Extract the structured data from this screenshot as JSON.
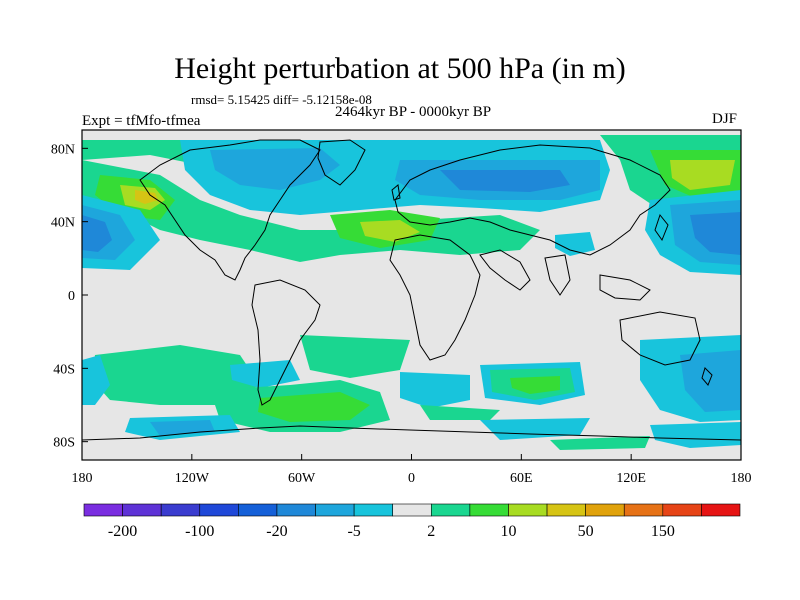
{
  "header": {
    "title": "Height perturbation at 500 hPa (in m)",
    "stats": "rmsd= 5.15425 diff= -5.12158e-08",
    "period": "2464kyr BP - 0000kyr BP",
    "experiment": "Expt = tfMfo-tfmea",
    "season": "DJF"
  },
  "map": {
    "projection": "cylindrical-equidistant",
    "lon_range": [
      -180,
      180
    ],
    "lat_range": [
      -90,
      90
    ],
    "x_ticks": [
      {
        "label": "180"
      },
      {
        "label": "120W"
      },
      {
        "label": "60W"
      },
      {
        "label": "0"
      },
      {
        "label": "60E"
      },
      {
        "label": "120E"
      },
      {
        "label": "180"
      }
    ],
    "y_ticks": [
      {
        "label": "80N"
      },
      {
        "label": "40N"
      },
      {
        "label": "0"
      },
      {
        "label": "40S"
      },
      {
        "label": "80S"
      }
    ],
    "background_color": "#e6e6e6"
  },
  "colorbar": {
    "colors": [
      "#7a2ee0",
      "#5e32d6",
      "#3a3ccf",
      "#1f48d8",
      "#1560d8",
      "#1f88d8",
      "#1ea6dc",
      "#18c4dc",
      "#e6e6e6",
      "#1ad690",
      "#36dc36",
      "#a8dc22",
      "#d6c414",
      "#e0a20c",
      "#e67216",
      "#e64416",
      "#e61414"
    ],
    "labels": [
      "-200",
      "-100",
      "-20",
      "-5",
      "2",
      "10",
      "50",
      "150"
    ]
  }
}
